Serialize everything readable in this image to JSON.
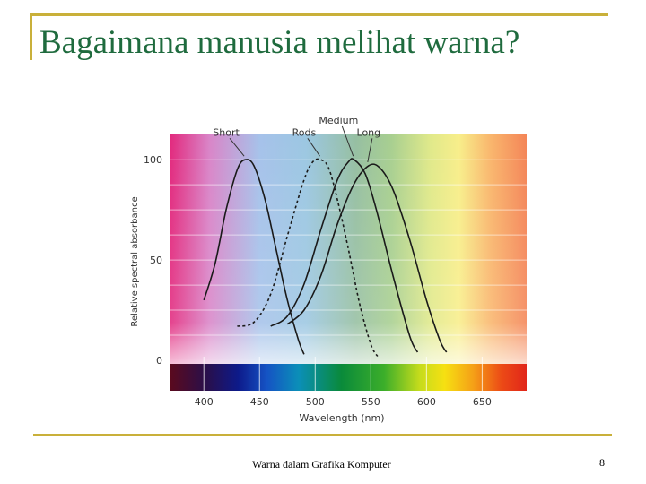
{
  "slide": {
    "title": "Bagaimana manusia melihat warna?",
    "footer": "Warna dalam Grafika Komputer",
    "page_number": "8",
    "accent_color": "#c9b03a",
    "title_color": "#1f6b3e"
  },
  "chart_data": {
    "type": "line",
    "title": "",
    "xlabel": "Wavelength (nm)",
    "ylabel": "Relative spectral absorbance",
    "xlim": [
      370,
      690
    ],
    "ylim": [
      0,
      105
    ],
    "x_ticks": [
      "400",
      "450",
      "500",
      "550",
      "600",
      "650"
    ],
    "y_ticks": [
      "0",
      "50",
      "100"
    ],
    "grid": true,
    "series": [
      {
        "name": "Short",
        "style": "solid",
        "label_pos": [
          420,
          112
        ],
        "points": [
          [
            400,
            30
          ],
          [
            410,
            48
          ],
          [
            420,
            75
          ],
          [
            430,
            95
          ],
          [
            437,
            100
          ],
          [
            445,
            97
          ],
          [
            455,
            80
          ],
          [
            465,
            55
          ],
          [
            475,
            30
          ],
          [
            485,
            10
          ],
          [
            490,
            3
          ]
        ]
      },
      {
        "name": "Rods",
        "style": "dashed",
        "label_pos": [
          490,
          112
        ],
        "points": [
          [
            430,
            17
          ],
          [
            445,
            19
          ],
          [
            460,
            33
          ],
          [
            475,
            62
          ],
          [
            490,
            90
          ],
          [
            498,
            99
          ],
          [
            505,
            100
          ],
          [
            512,
            96
          ],
          [
            520,
            80
          ],
          [
            530,
            55
          ],
          [
            540,
            28
          ],
          [
            550,
            8
          ],
          [
            556,
            2
          ]
        ]
      },
      {
        "name": "Medium",
        "style": "solid",
        "label_pos": [
          521,
          118
        ],
        "points": [
          [
            460,
            17
          ],
          [
            475,
            22
          ],
          [
            490,
            38
          ],
          [
            505,
            65
          ],
          [
            520,
            90
          ],
          [
            530,
            99
          ],
          [
            535,
            100
          ],
          [
            545,
            93
          ],
          [
            555,
            75
          ],
          [
            570,
            42
          ],
          [
            585,
            12
          ],
          [
            592,
            4
          ]
        ]
      },
      {
        "name": "Long",
        "style": "solid",
        "label_pos": [
          548,
          112
        ],
        "points": [
          [
            475,
            18
          ],
          [
            490,
            25
          ],
          [
            505,
            42
          ],
          [
            520,
            68
          ],
          [
            535,
            88
          ],
          [
            548,
            97
          ],
          [
            558,
            96
          ],
          [
            570,
            85
          ],
          [
            585,
            60
          ],
          [
            600,
            30
          ],
          [
            612,
            10
          ],
          [
            618,
            4
          ]
        ]
      }
    ]
  }
}
